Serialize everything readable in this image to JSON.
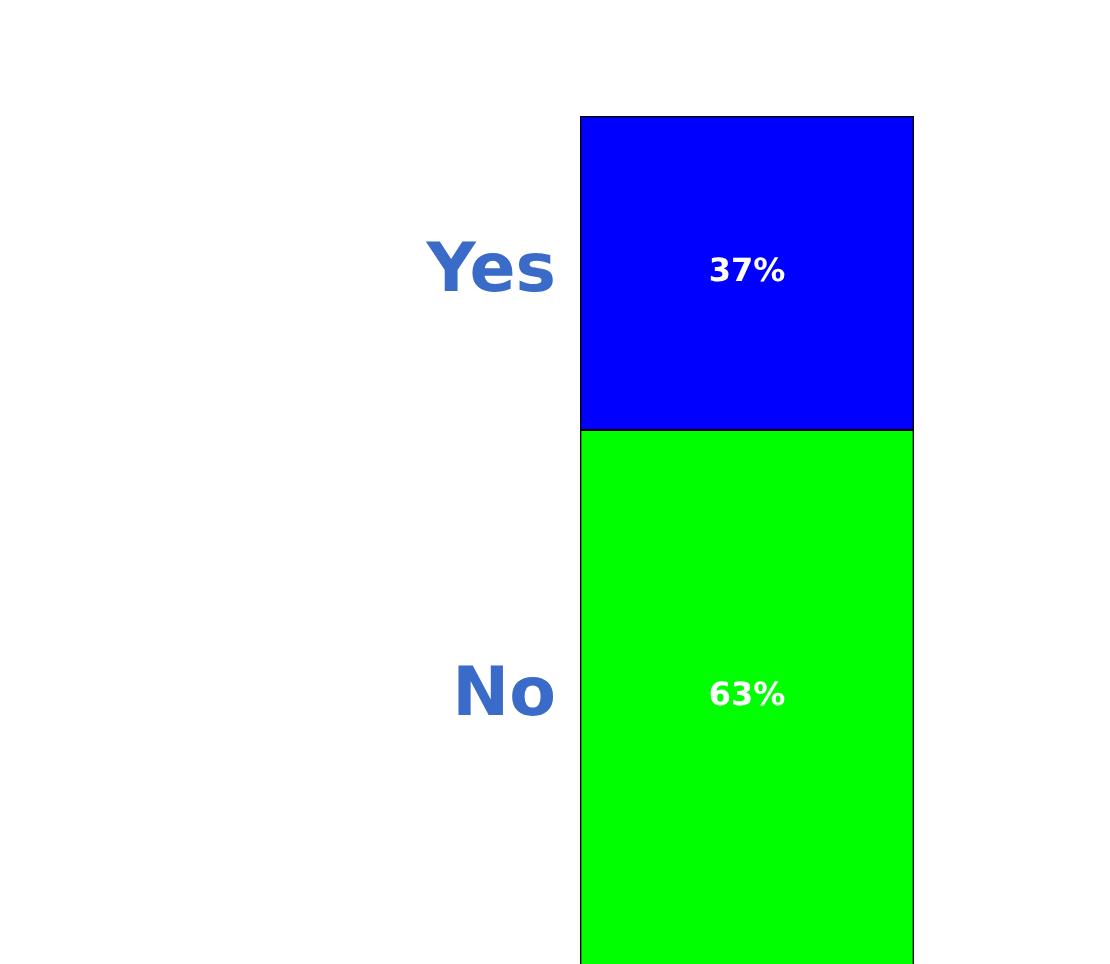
{
  "chart_data": {
    "type": "bar",
    "stacked": true,
    "categories": [
      null
    ],
    "series": [
      {
        "name": "No",
        "color": "#00ff00",
        "values": [
          63
        ],
        "value_labels": [
          "63%"
        ]
      },
      {
        "name": "Yes",
        "color": "#0000ff",
        "values": [
          37
        ],
        "value_labels": [
          "37%"
        ]
      }
    ],
    "legend": false,
    "tick_labels": false
  }
}
